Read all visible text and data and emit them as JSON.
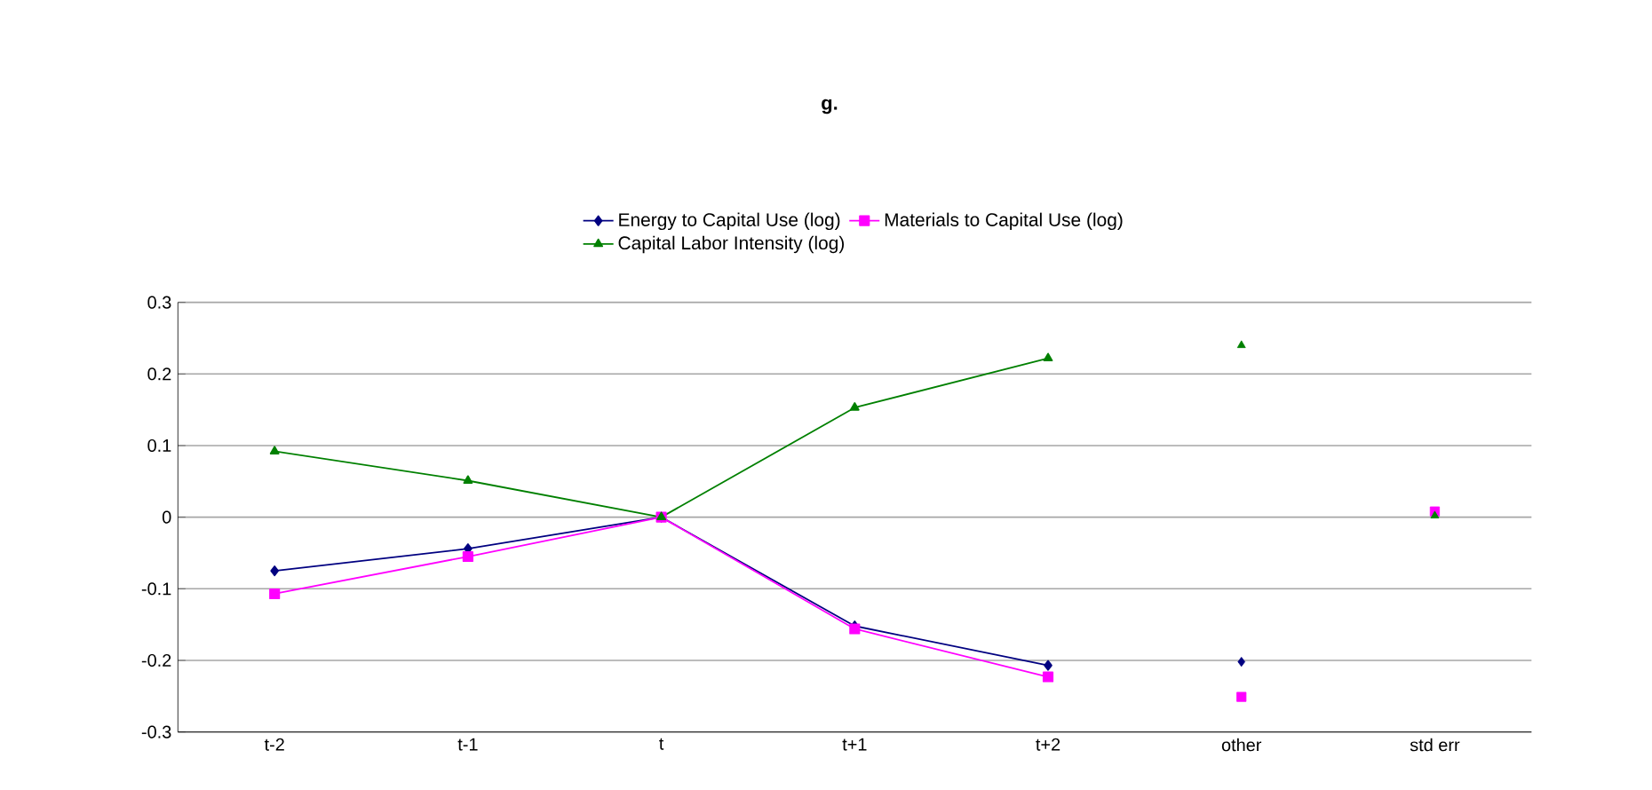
{
  "chart_data": {
    "type": "line",
    "title": "**g.**",
    "categories": [
      "t-2",
      "t-1",
      "t",
      "t+1",
      "t+2",
      "other",
      "std err"
    ],
    "series": [
      {
        "name": "Energy to Capital Use (log)",
        "color": "#000080",
        "marker": "diamond",
        "values": [
          -0.075,
          -0.044,
          0,
          -0.152,
          -0.207,
          null,
          null
        ]
      },
      {
        "name": "Materials to Capital Use (log)",
        "color": "#ff00ff",
        "marker": "square",
        "values": [
          -0.107,
          -0.055,
          0,
          -0.156,
          -0.223,
          null,
          null
        ]
      },
      {
        "name": "Capital Labor Intensity (log)",
        "color": "#008000",
        "marker": "triangle",
        "values": [
          0.092,
          0.051,
          0,
          0.153,
          0.222,
          null,
          null
        ]
      },
      {
        "type": "scatter",
        "color": "#000080",
        "marker": "diamond",
        "values": [
          null,
          null,
          null,
          null,
          null,
          -0.202,
          null
        ]
      },
      {
        "type": "scatter",
        "color": "#ff00ff",
        "marker": "square",
        "values": [
          null,
          null,
          null,
          null,
          null,
          -0.251,
          0.008
        ]
      },
      {
        "type": "scatter",
        "color": "#008000",
        "marker": "triangle",
        "values": [
          null,
          null,
          null,
          null,
          null,
          0.24,
          0.002
        ]
      }
    ],
    "ylim": [
      -0.3,
      0.3
    ],
    "yticks": [
      -0.3,
      -0.2,
      -0.1,
      0,
      0.1,
      0.2,
      0.3
    ],
    "grid": "y",
    "legend": "top"
  }
}
